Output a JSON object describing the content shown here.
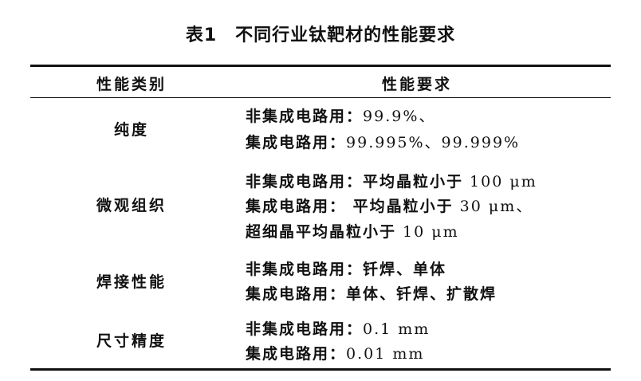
{
  "title": "表1　不同行业钛靶材的性能要求",
  "table": {
    "headers": [
      "性能类别",
      "性能要求"
    ],
    "rows": [
      {
        "category": "纯度",
        "lines": [
          {
            "prefix": "非集成电路用：",
            "value": "99.9%、"
          },
          {
            "prefix": "集成电路用：",
            "value": "99.995%、99.999%"
          }
        ]
      },
      {
        "category": "微观组织",
        "lines": [
          {
            "prefix": "非集成电路用：平均晶粒小于",
            "value": " 100 μm"
          },
          {
            "prefix": "集成电路用： 平均晶粒小于",
            "value": " 30 μm、"
          },
          {
            "prefix": "超细晶平均晶粒小于",
            "value": " 10 μm"
          }
        ]
      },
      {
        "category": "焊接性能",
        "lines": [
          {
            "prefix": "非集成电路用：钎焊、单体",
            "value": ""
          },
          {
            "prefix": "集成电路用：单体、钎焊、扩散焊",
            "value": ""
          }
        ]
      },
      {
        "category": "尺寸精度",
        "lines": [
          {
            "prefix": "非集成电路用：",
            "value": "0.1 mm"
          },
          {
            "prefix": "集成电路用：",
            "value": "0.01 mm"
          }
        ]
      }
    ]
  }
}
